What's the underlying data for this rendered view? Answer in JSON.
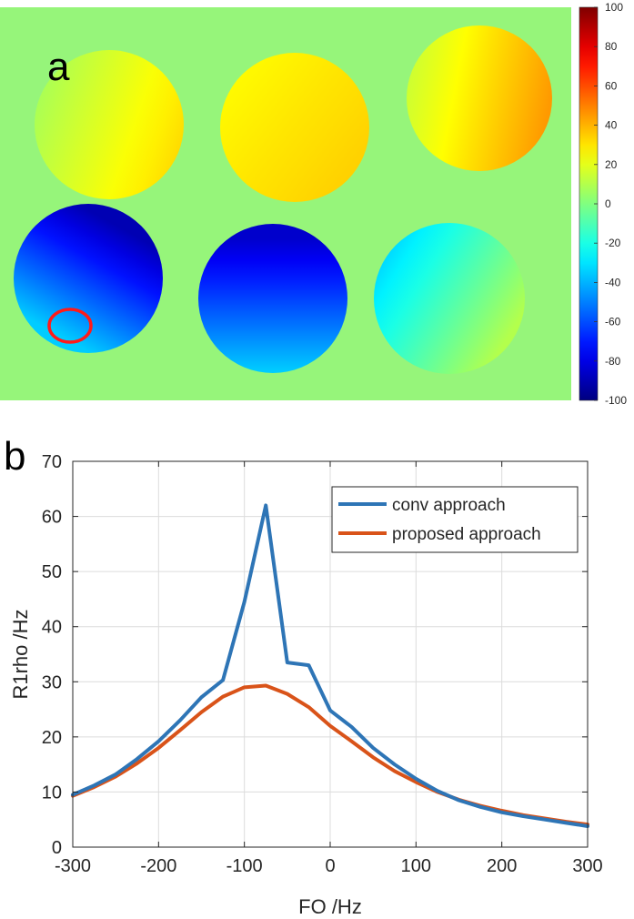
{
  "panel_a": {
    "label": "a",
    "background_color": "#96f57a",
    "roi_color": "#ff1a1a",
    "colorbar": {
      "colormap": "jet",
      "min": -100,
      "max": 100,
      "ticks": [
        100,
        80,
        60,
        40,
        20,
        0,
        -20,
        -40,
        -60,
        -80,
        -100
      ]
    },
    "phantoms": [
      {
        "row": 1,
        "col": 1,
        "value_range": [
          8,
          32
        ]
      },
      {
        "row": 1,
        "col": 2,
        "value_range": [
          25,
          35
        ]
      },
      {
        "row": 1,
        "col": 3,
        "value_range": [
          15,
          45
        ]
      },
      {
        "row": 2,
        "col": 1,
        "value_range": [
          -90,
          -35
        ]
      },
      {
        "row": 2,
        "col": 2,
        "value_range": [
          -85,
          -35
        ]
      },
      {
        "row": 2,
        "col": 3,
        "value_range": [
          -35,
          10
        ]
      }
    ]
  },
  "panel_b": {
    "label": "b"
  },
  "chart_data": {
    "type": "line",
    "title": "",
    "xlabel": "FO /Hz",
    "ylabel": "R1rho /Hz",
    "xlim": [
      -300,
      300
    ],
    "ylim": [
      0,
      70
    ],
    "xticks": [
      -300,
      -200,
      -100,
      0,
      100,
      200,
      300
    ],
    "yticks": [
      0,
      10,
      20,
      30,
      40,
      50,
      60,
      70
    ],
    "grid": true,
    "legend_position": "top-right",
    "x": [
      -300,
      -275,
      -250,
      -225,
      -200,
      -175,
      -150,
      -125,
      -100,
      -75,
      -50,
      -25,
      0,
      25,
      50,
      75,
      100,
      125,
      150,
      175,
      200,
      225,
      250,
      275,
      300
    ],
    "series": [
      {
        "name": "conv approach",
        "color": "#2e75b6",
        "values": [
          9.5,
          11.2,
          13.2,
          16.0,
          19.2,
          23.0,
          27.2,
          30.3,
          44.5,
          62.0,
          33.5,
          33.0,
          24.8,
          21.8,
          18.0,
          15.0,
          12.4,
          10.2,
          8.5,
          7.3,
          6.3,
          5.6,
          5.0,
          4.4,
          3.8
        ]
      },
      {
        "name": "proposed approach",
        "color": "#d95319",
        "values": [
          9.3,
          10.9,
          12.8,
          15.2,
          18.0,
          21.2,
          24.5,
          27.3,
          29.0,
          29.3,
          27.8,
          25.4,
          22.0,
          19.2,
          16.3,
          13.8,
          11.8,
          10.0,
          8.6,
          7.5,
          6.6,
          5.8,
          5.2,
          4.6,
          4.1
        ]
      }
    ]
  }
}
